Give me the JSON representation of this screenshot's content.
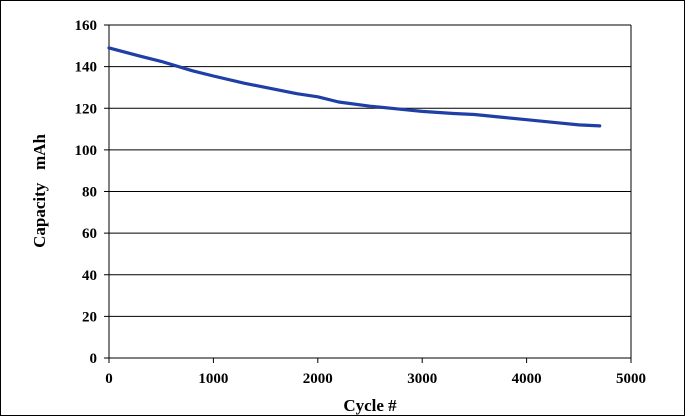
{
  "chart_data": {
    "type": "line",
    "title": "",
    "xlabel": "Cycle #",
    "ylabel": "Capacity   mAh",
    "xlim": [
      0,
      5000
    ],
    "ylim": [
      0,
      160
    ],
    "xticks": [
      0,
      1000,
      2000,
      3000,
      4000,
      5000
    ],
    "yticks": [
      0,
      20,
      40,
      60,
      80,
      100,
      120,
      140,
      160
    ],
    "grid": true,
    "legend": "none",
    "series": [
      {
        "color": "#1f3fa6",
        "x": [
          0,
          300,
          500,
          800,
          1000,
          1300,
          1500,
          1800,
          2000,
          2200,
          2500,
          2800,
          3000,
          3300,
          3500,
          3800,
          4000,
          4300,
          4500,
          4700
        ],
        "y": [
          149,
          145,
          142.5,
          138,
          135.5,
          132,
          130,
          127,
          125.5,
          123,
          121,
          119.5,
          118.5,
          117.5,
          117,
          115.5,
          114.5,
          113,
          112,
          111.5
        ]
      }
    ]
  }
}
